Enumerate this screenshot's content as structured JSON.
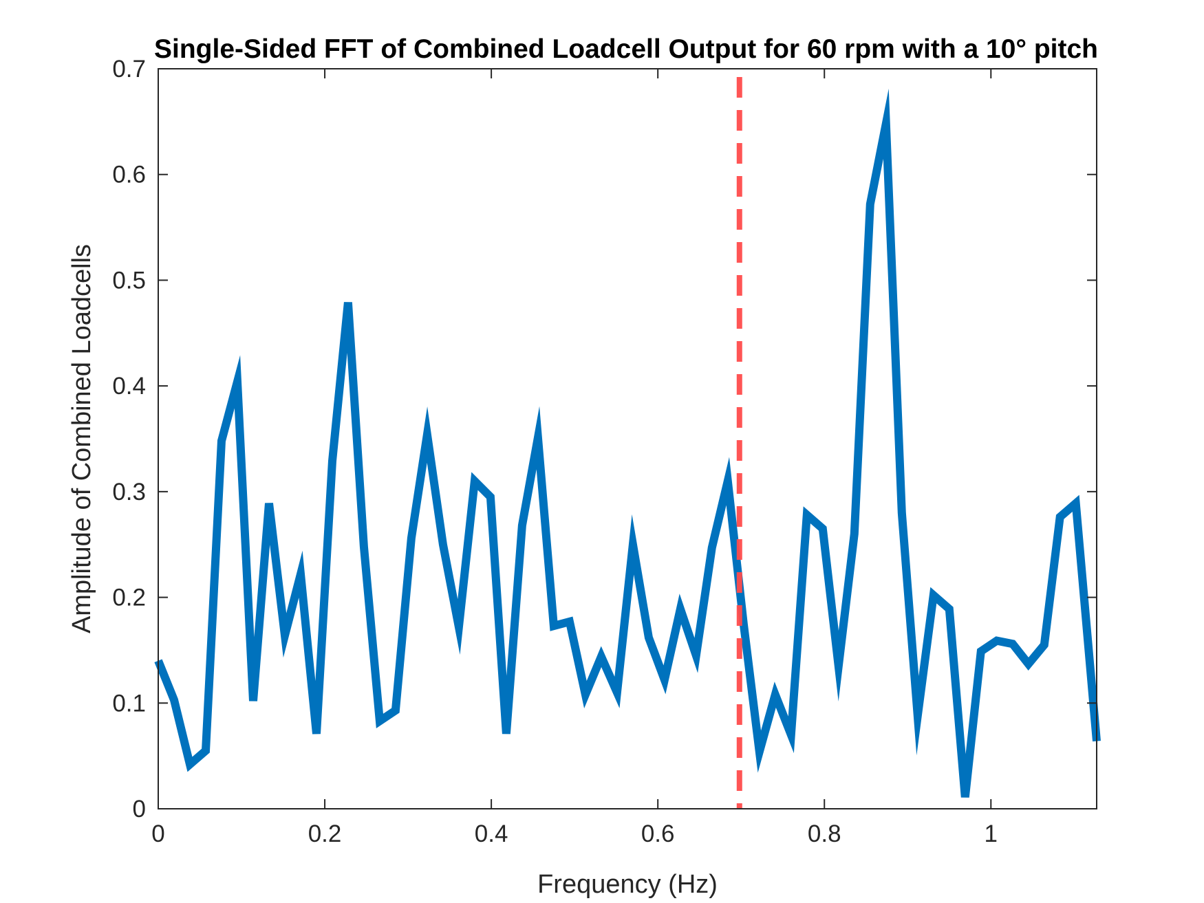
{
  "chart_data": {
    "type": "line",
    "title": "Single-Sided FFT of Combined Loadcell Output for 60 rpm with a 10° pitch",
    "xlabel": "Frequency (Hz)",
    "ylabel": "Amplitude of Combined Loadcells",
    "xlim": [
      0,
      1.127
    ],
    "ylim": [
      0,
      0.7
    ],
    "xticks": [
      0,
      0.2,
      0.4,
      0.6,
      0.8,
      1
    ],
    "xtick_labels": [
      "0",
      "0.2",
      "0.4",
      "0.6",
      "0.8",
      "1"
    ],
    "yticks": [
      0,
      0.1,
      0.2,
      0.3,
      0.4,
      0.5,
      0.6,
      0.7
    ],
    "ytick_labels": [
      "0",
      "0.1",
      "0.2",
      "0.3",
      "0.4",
      "0.5",
      "0.6",
      "0.7"
    ],
    "grid": false,
    "series": [
      {
        "color": "#0072BD",
        "x": [
          0,
          0.019,
          0.038,
          0.057,
          0.076,
          0.095,
          0.114,
          0.133,
          0.152,
          0.171,
          0.19,
          0.209,
          0.228,
          0.247,
          0.266,
          0.285,
          0.304,
          0.323,
          0.342,
          0.361,
          0.38,
          0.399,
          0.418,
          0.437,
          0.456,
          0.475,
          0.494,
          0.513,
          0.532,
          0.551,
          0.57,
          0.589,
          0.608,
          0.627,
          0.646,
          0.665,
          0.684,
          0.703,
          0.722,
          0.741,
          0.76,
          0.779,
          0.798,
          0.817,
          0.836,
          0.855,
          0.874,
          0.893,
          0.912,
          0.931,
          0.95,
          0.969,
          0.988,
          1.007,
          1.026,
          1.045,
          1.064,
          1.083,
          1.102,
          1.127
        ],
        "y": [
          0.14,
          0.103,
          0.042,
          0.055,
          0.348,
          0.404,
          0.102,
          0.289,
          0.164,
          0.222,
          0.071,
          0.329,
          0.479,
          0.248,
          0.083,
          0.093,
          0.256,
          0.354,
          0.25,
          0.172,
          0.31,
          0.295,
          0.071,
          0.268,
          0.351,
          0.173,
          0.177,
          0.108,
          0.144,
          0.11,
          0.25,
          0.162,
          0.122,
          0.189,
          0.145,
          0.247,
          0.31,
          0.175,
          0.054,
          0.108,
          0.07,
          0.278,
          0.265,
          0.135,
          0.26,
          0.572,
          0.648,
          0.28,
          0.088,
          0.202,
          0.189,
          0.011,
          0.149,
          0.159,
          0.156,
          0.137,
          0.155,
          0.276,
          0.289,
          0.064
        ]
      }
    ],
    "reference_lines": [
      {
        "orientation": "vertical",
        "x": 0.698,
        "color": "#FF4C4C",
        "style": "dashed"
      }
    ]
  }
}
